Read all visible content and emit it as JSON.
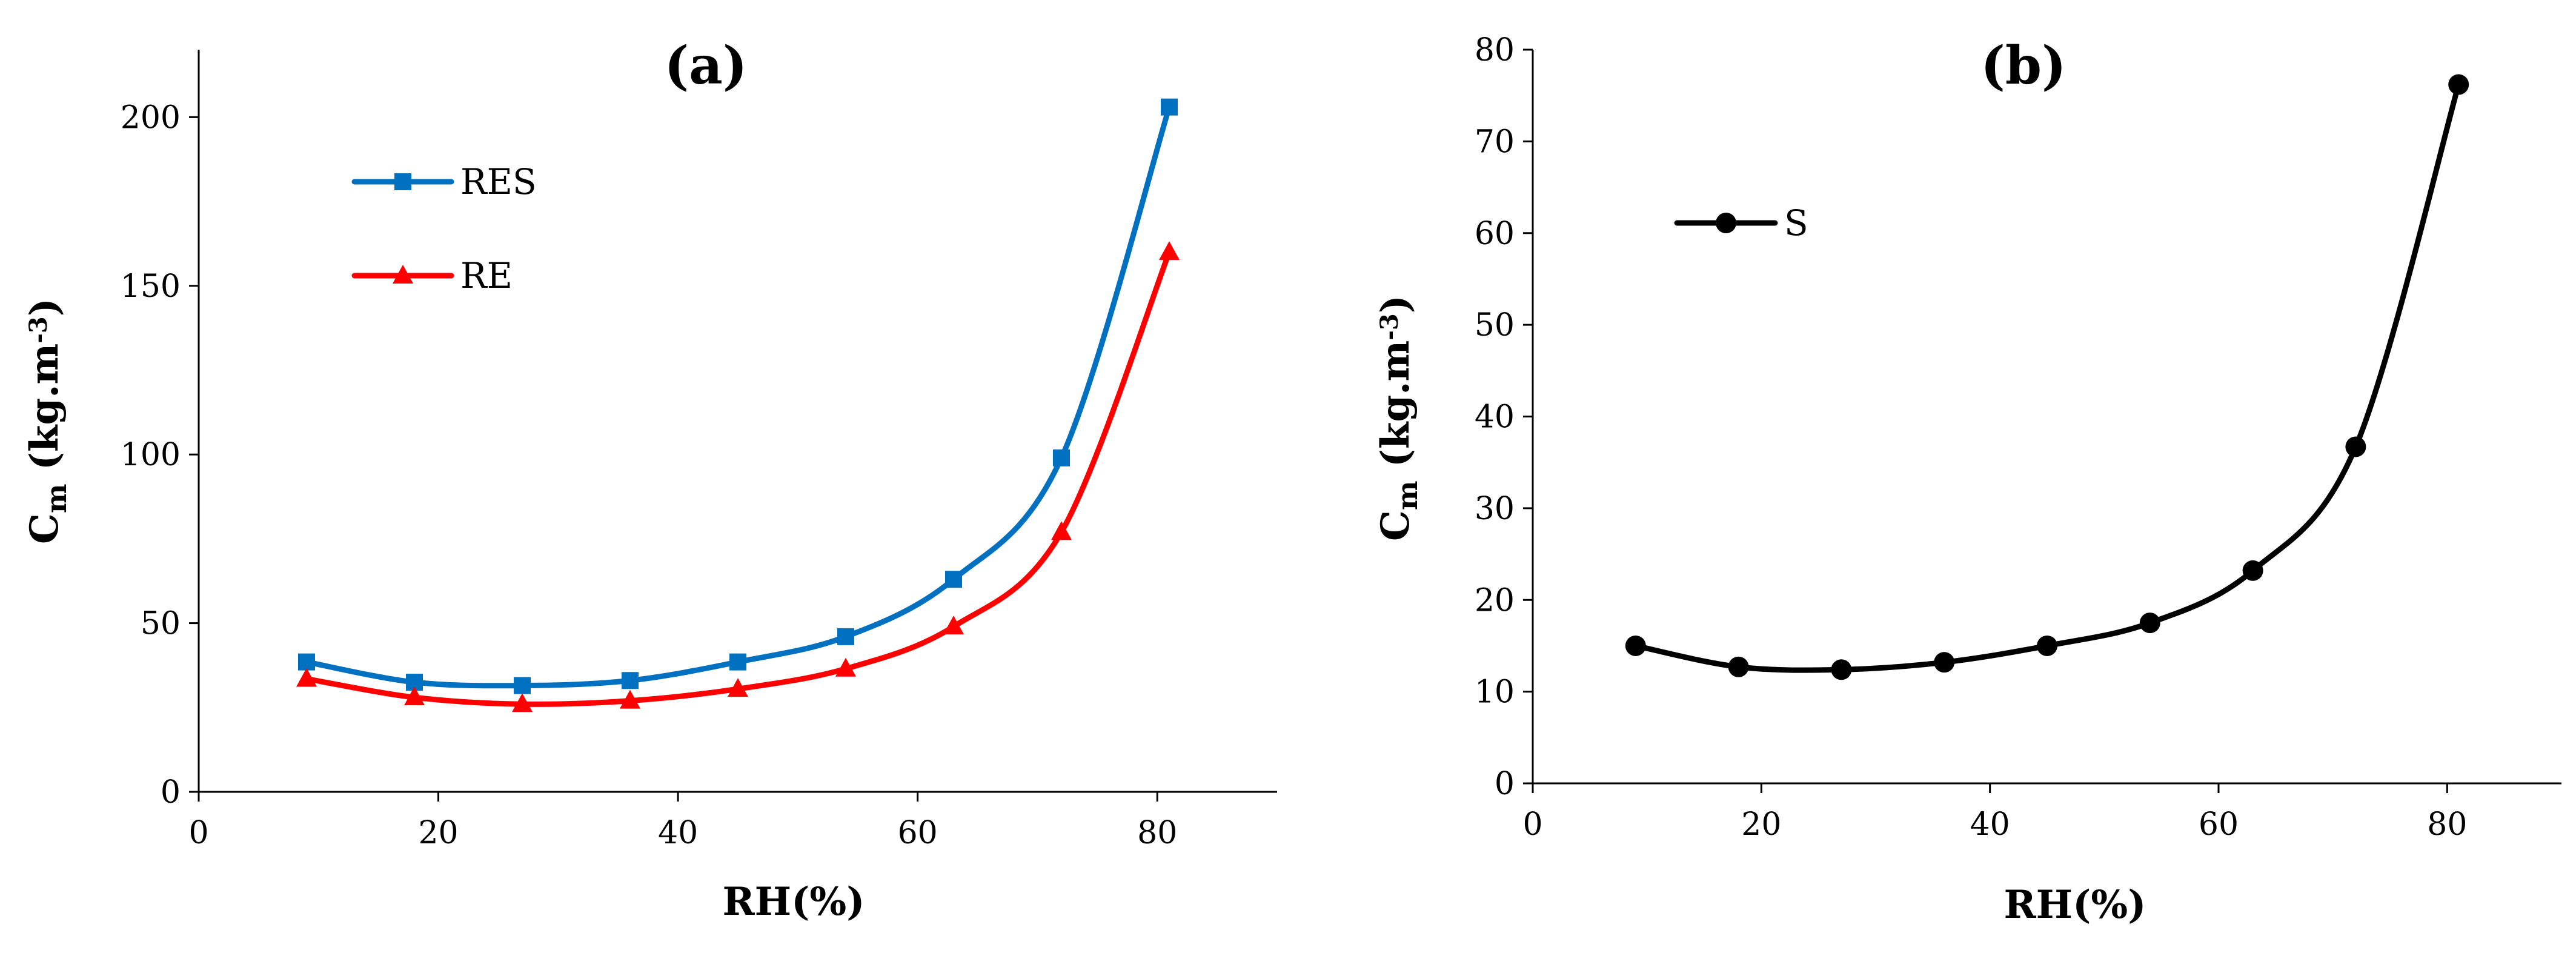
{
  "chart_data": [
    {
      "type": "line",
      "title": "(a)",
      "xlabel": "RH(%)",
      "ylabel": {
        "main": "C",
        "sub": "m",
        "units": " (kg.m",
        "sup": "-3",
        "close": ")"
      },
      "xlim": [
        0,
        90
      ],
      "ylim": [
        0,
        220
      ],
      "xticks": [
        0,
        20,
        40,
        60,
        80
      ],
      "yticks": [
        0,
        50,
        100,
        150,
        200
      ],
      "legend_position": "upper-left",
      "series": [
        {
          "name": "RES",
          "color": "#0070C0",
          "marker": "square",
          "x": [
            9,
            18,
            27,
            36,
            45,
            54,
            63,
            72,
            81
          ],
          "y": [
            38.5,
            32.5,
            31.5,
            33,
            38.5,
            46,
            63,
            99,
            203
          ]
        },
        {
          "name": "RE",
          "color": "#FF0000",
          "marker": "triangle",
          "x": [
            9,
            18,
            27,
            36,
            45,
            54,
            63,
            72,
            81
          ],
          "y": [
            33.5,
            28,
            26,
            27,
            30.5,
            36.5,
            49,
            77,
            160
          ]
        }
      ]
    },
    {
      "type": "line",
      "title": "(b)",
      "xlabel": "RH(%)",
      "ylabel": {
        "main": "C",
        "sub": "m",
        "units": " (kg.m",
        "sup": "-3",
        "close": ")"
      },
      "xlim": [
        0,
        90
      ],
      "ylim": [
        0,
        80
      ],
      "xticks": [
        0,
        20,
        40,
        60,
        80
      ],
      "yticks": [
        0,
        10,
        20,
        30,
        40,
        50,
        60,
        70,
        80
      ],
      "legend_position": "upper-left",
      "series": [
        {
          "name": "S",
          "color": "#000000",
          "marker": "circle",
          "x": [
            9,
            18,
            27,
            36,
            45,
            54,
            63,
            72,
            81
          ],
          "y": [
            15,
            12.7,
            12.4,
            13.2,
            15,
            17.5,
            23.2,
            36.7,
            76.2
          ]
        }
      ]
    }
  ]
}
